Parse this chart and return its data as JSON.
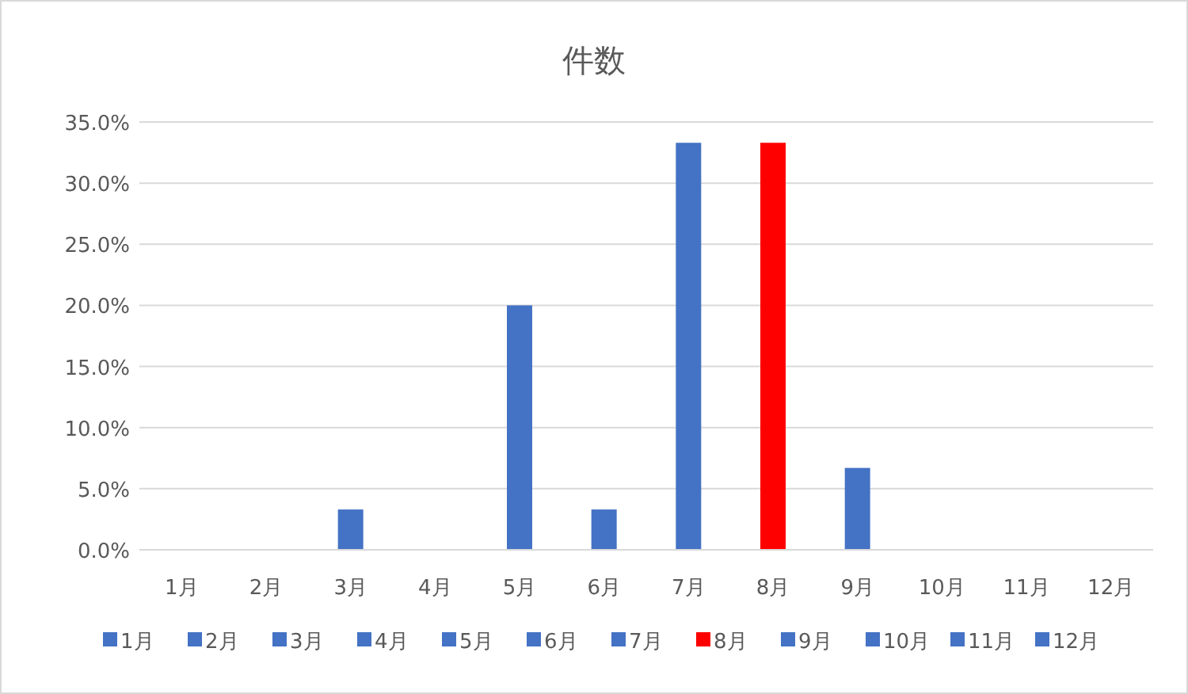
{
  "chart_data": {
    "type": "bar",
    "title": "件数",
    "categories": [
      "1月",
      "2月",
      "3月",
      "4月",
      "5月",
      "6月",
      "7月",
      "8月",
      "9月",
      "10月",
      "11月",
      "12月"
    ],
    "stacked": true,
    "series": [
      {
        "name": "1月",
        "color": "#4472c4",
        "values": [
          0,
          null,
          null,
          null,
          null,
          null,
          null,
          null,
          null,
          null,
          null,
          null
        ]
      },
      {
        "name": "2月",
        "color": "#4472c4",
        "values": [
          null,
          0,
          null,
          null,
          null,
          null,
          null,
          null,
          null,
          null,
          null,
          null
        ]
      },
      {
        "name": "3月",
        "color": "#4472c4",
        "values": [
          null,
          null,
          3.3,
          null,
          null,
          null,
          null,
          null,
          null,
          null,
          null,
          null
        ]
      },
      {
        "name": "4月",
        "color": "#4472c4",
        "values": [
          null,
          null,
          null,
          0,
          null,
          null,
          null,
          null,
          null,
          null,
          null,
          null
        ]
      },
      {
        "name": "5月",
        "color": "#4472c4",
        "values": [
          null,
          null,
          null,
          null,
          20.0,
          null,
          null,
          null,
          null,
          null,
          null,
          null
        ]
      },
      {
        "name": "6月",
        "color": "#4472c4",
        "values": [
          null,
          null,
          null,
          null,
          null,
          3.3,
          null,
          null,
          null,
          null,
          null,
          null
        ]
      },
      {
        "name": "7月",
        "color": "#4472c4",
        "values": [
          null,
          null,
          null,
          null,
          null,
          null,
          33.3,
          null,
          null,
          null,
          null,
          null
        ]
      },
      {
        "name": "8月",
        "color": "#ff0000",
        "values": [
          null,
          null,
          null,
          null,
          null,
          null,
          null,
          33.3,
          null,
          null,
          null,
          null
        ]
      },
      {
        "name": "9月",
        "color": "#4472c4",
        "values": [
          null,
          null,
          null,
          null,
          null,
          null,
          null,
          null,
          6.7,
          null,
          null,
          null
        ]
      },
      {
        "name": "10月",
        "color": "#4472c4",
        "values": [
          null,
          null,
          null,
          null,
          null,
          null,
          null,
          null,
          null,
          0,
          null,
          null
        ]
      },
      {
        "name": "11月",
        "color": "#4472c4",
        "values": [
          null,
          null,
          null,
          null,
          null,
          null,
          null,
          null,
          null,
          null,
          0,
          null
        ]
      },
      {
        "name": "12月",
        "color": "#4472c4",
        "values": [
          null,
          null,
          null,
          null,
          null,
          null,
          null,
          null,
          null,
          null,
          null,
          0
        ]
      }
    ],
    "ylim": [
      0,
      35
    ],
    "yticks": [
      {
        "value": 0,
        "label": "0.0%"
      },
      {
        "value": 5,
        "label": "5.0%"
      },
      {
        "value": 10,
        "label": "10.0%"
      },
      {
        "value": 15,
        "label": "15.0%"
      },
      {
        "value": 20,
        "label": "20.0%"
      },
      {
        "value": 25,
        "label": "25.0%"
      },
      {
        "value": 30,
        "label": "30.0%"
      },
      {
        "value": 35,
        "label": "35.0%"
      }
    ],
    "grid": "y",
    "legend": "bottom"
  }
}
